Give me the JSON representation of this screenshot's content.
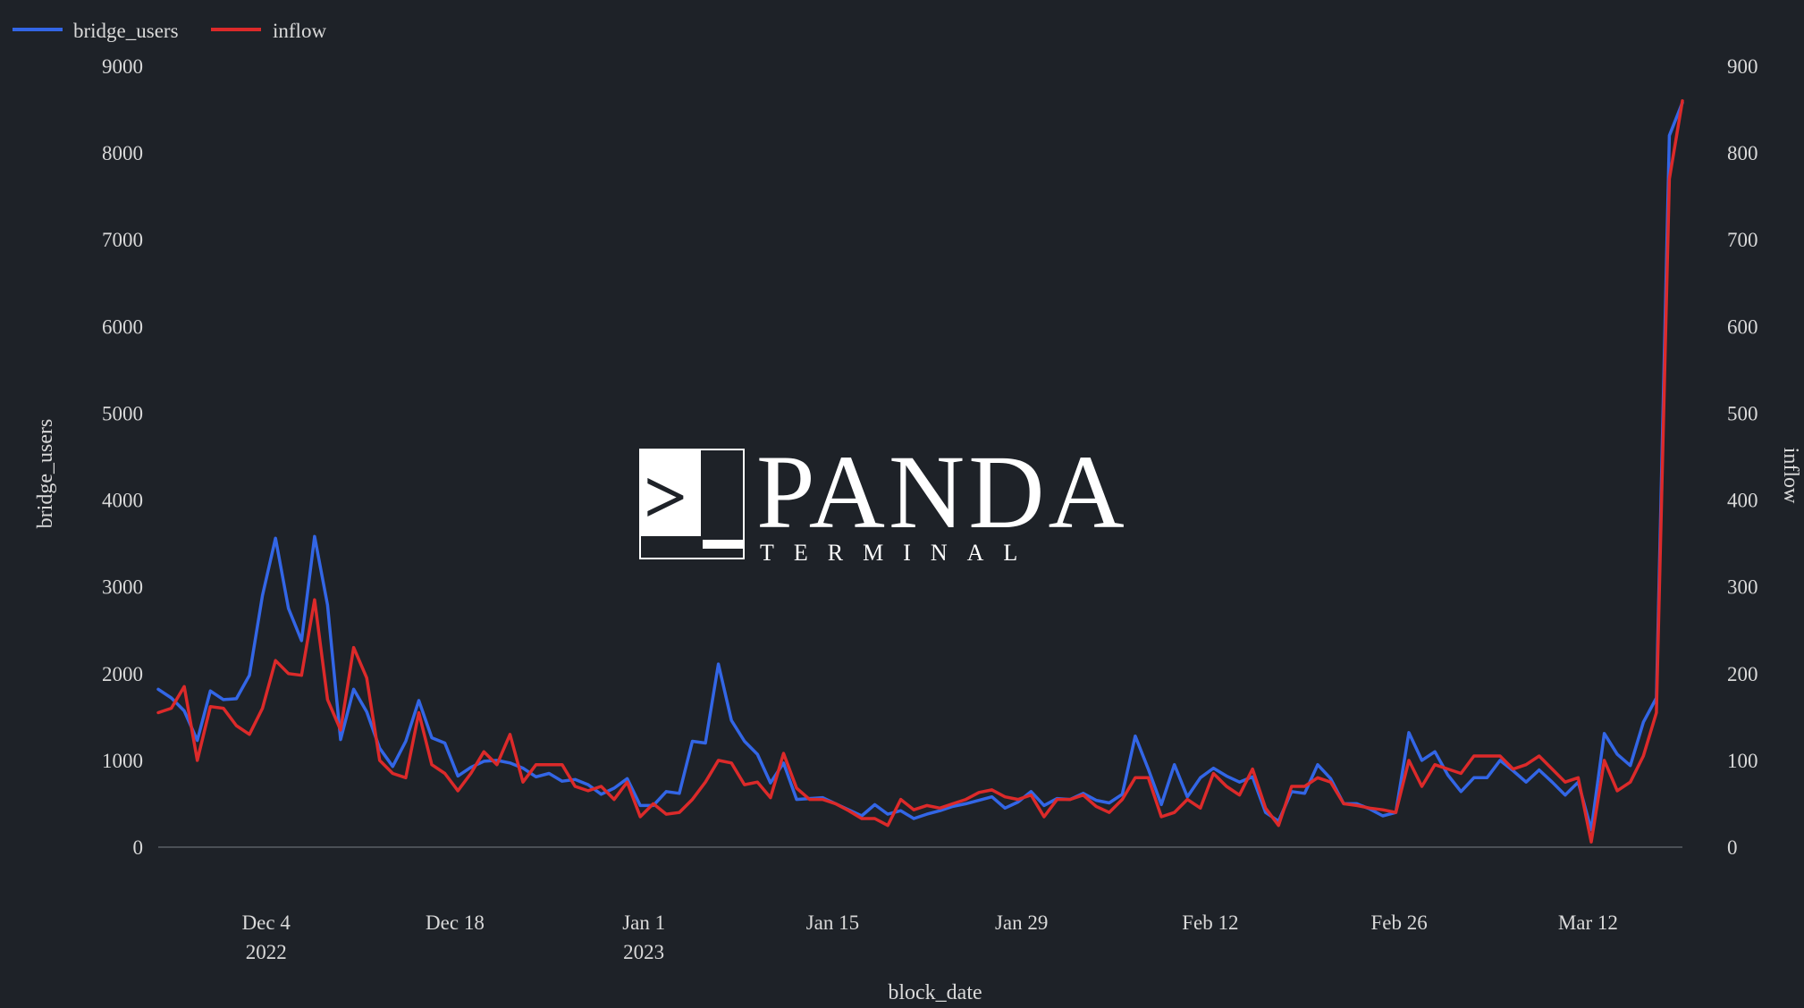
{
  "colors": {
    "background": "#1e2228",
    "bridge_users": "#3366e6",
    "inflow": "#dc2a2a",
    "text": "#d9d9d9",
    "zero_line": "#5a5f66",
    "watermark": "#ffffff"
  },
  "watermark": {
    "word": "PANDA",
    "subword": "TERMINAL",
    "prompt_glyph": ">"
  },
  "chart_data": {
    "type": "line",
    "dual_axis": true,
    "title": "",
    "xlabel": "block_date",
    "ylabel_left": "bridge_users",
    "ylabel_right": "inflow",
    "x_start": "2022-11-26",
    "x_end": "2023-03-19",
    "xlim": [
      "2022-11-26",
      "2023-03-19"
    ],
    "y_left_lim": [
      0,
      9000
    ],
    "y_right_lim": [
      0,
      900
    ],
    "y_left_ticks": [
      0,
      1000,
      2000,
      3000,
      4000,
      5000,
      6000,
      7000,
      8000,
      9000
    ],
    "y_right_ticks": [
      0,
      100,
      200,
      300,
      400,
      500,
      600,
      700,
      800,
      900
    ],
    "x_ticks": [
      {
        "date": "2022-12-04",
        "label": "Dec 4",
        "sublabel": "2022"
      },
      {
        "date": "2022-12-18",
        "label": "Dec 18",
        "sublabel": ""
      },
      {
        "date": "2023-01-01",
        "label": "Jan 1",
        "sublabel": "2023"
      },
      {
        "date": "2023-01-15",
        "label": "Jan 15",
        "sublabel": ""
      },
      {
        "date": "2023-01-29",
        "label": "Jan 29",
        "sublabel": ""
      },
      {
        "date": "2023-02-12",
        "label": "Feb 12",
        "sublabel": ""
      },
      {
        "date": "2023-02-26",
        "label": "Feb 26",
        "sublabel": ""
      },
      {
        "date": "2023-03-12",
        "label": "Mar 12",
        "sublabel": ""
      }
    ],
    "grid": false,
    "legend": "top-left",
    "series": [
      {
        "name": "bridge_users",
        "axis": "left",
        "values": [
          1820,
          1720,
          1570,
          1230,
          1800,
          1700,
          1710,
          1980,
          2900,
          3560,
          2750,
          2380,
          3580,
          2790,
          1240,
          1820,
          1560,
          1140,
          930,
          1220,
          1690,
          1260,
          1200,
          820,
          920,
          990,
          1000,
          970,
          910,
          810,
          850,
          760,
          780,
          720,
          610,
          680,
          790,
          480,
          480,
          640,
          620,
          1220,
          1200,
          2110,
          1460,
          1220,
          1070,
          740,
          970,
          550,
          560,
          570,
          500,
          430,
          360,
          490,
          380,
          420,
          330,
          380,
          420,
          470,
          500,
          540,
          580,
          450,
          520,
          640,
          480,
          560,
          550,
          620,
          540,
          510,
          610,
          1280,
          900,
          490,
          950,
          580,
          800,
          910,
          820,
          750,
          810,
          400,
          300,
          640,
          620,
          950,
          790,
          500,
          500,
          440,
          360,
          400,
          1320,
          1000,
          1100,
          830,
          640,
          800,
          800,
          1000,
          880,
          750,
          890,
          750,
          600,
          750,
          200,
          1310,
          1070,
          940,
          1440,
          1720,
          8200,
          8580
        ]
      },
      {
        "name": "inflow",
        "axis": "right",
        "values": [
          155,
          160,
          185,
          100,
          162,
          160,
          140,
          130,
          160,
          215,
          200,
          198,
          285,
          170,
          135,
          230,
          195,
          100,
          85,
          80,
          155,
          95,
          85,
          65,
          85,
          110,
          95,
          130,
          75,
          95,
          95,
          95,
          70,
          65,
          70,
          55,
          75,
          35,
          50,
          38,
          40,
          55,
          75,
          100,
          97,
          72,
          75,
          57,
          108,
          68,
          55,
          55,
          50,
          42,
          33,
          33,
          25,
          55,
          43,
          48,
          45,
          50,
          55,
          63,
          66,
          58,
          55,
          60,
          35,
          55,
          55,
          60,
          47,
          40,
          55,
          80,
          80,
          35,
          40,
          55,
          45,
          85,
          70,
          60,
          90,
          45,
          25,
          70,
          70,
          80,
          75,
          50,
          48,
          45,
          43,
          40,
          100,
          70,
          95,
          90,
          85,
          105,
          105,
          105,
          90,
          95,
          105,
          90,
          75,
          80,
          6,
          100,
          65,
          75,
          105,
          155,
          770,
          860
        ]
      }
    ]
  }
}
